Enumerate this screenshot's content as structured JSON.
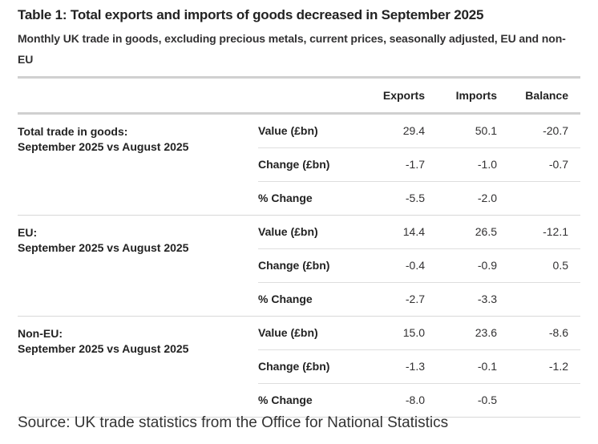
{
  "title": "Table 1: Total exports and imports of goods decreased in September 2025",
  "subtitle": "Monthly UK trade in goods, excluding precious metals, current prices, seasonally adjusted, EU and non-EU",
  "columns": [
    "Exports",
    "Imports",
    "Balance"
  ],
  "groups": [
    {
      "label": "Total trade in goods:",
      "period": "September 2025 vs August 2025",
      "rows": [
        {
          "measure": "Value (£bn)",
          "exports": "29.4",
          "imports": "50.1",
          "balance": "-20.7"
        },
        {
          "measure": "Change (£bn)",
          "exports": "-1.7",
          "imports": "-1.0",
          "balance": "-0.7"
        },
        {
          "measure": "% Change",
          "exports": "-5.5",
          "imports": "-2.0",
          "balance": ""
        }
      ]
    },
    {
      "label": "EU:",
      "period": "September 2025 vs August 2025",
      "rows": [
        {
          "measure": "Value (£bn)",
          "exports": "14.4",
          "imports": "26.5",
          "balance": "-12.1"
        },
        {
          "measure": "Change (£bn)",
          "exports": "-0.4",
          "imports": "-0.9",
          "balance": "0.5"
        },
        {
          "measure": "% Change",
          "exports": "-2.7",
          "imports": "-3.3",
          "balance": ""
        }
      ]
    },
    {
      "label": "Non-EU:",
      "period": "September 2025 vs August 2025",
      "rows": [
        {
          "measure": "Value (£bn)",
          "exports": "15.0",
          "imports": "23.6",
          "balance": "-8.6"
        },
        {
          "measure": "Change (£bn)",
          "exports": "-1.3",
          "imports": "-0.1",
          "balance": "-1.2"
        },
        {
          "measure": "% Change",
          "exports": "-8.0",
          "imports": "-0.5",
          "balance": ""
        }
      ]
    }
  ],
  "source": "Source: UK trade statistics from the Office for National Statistics"
}
